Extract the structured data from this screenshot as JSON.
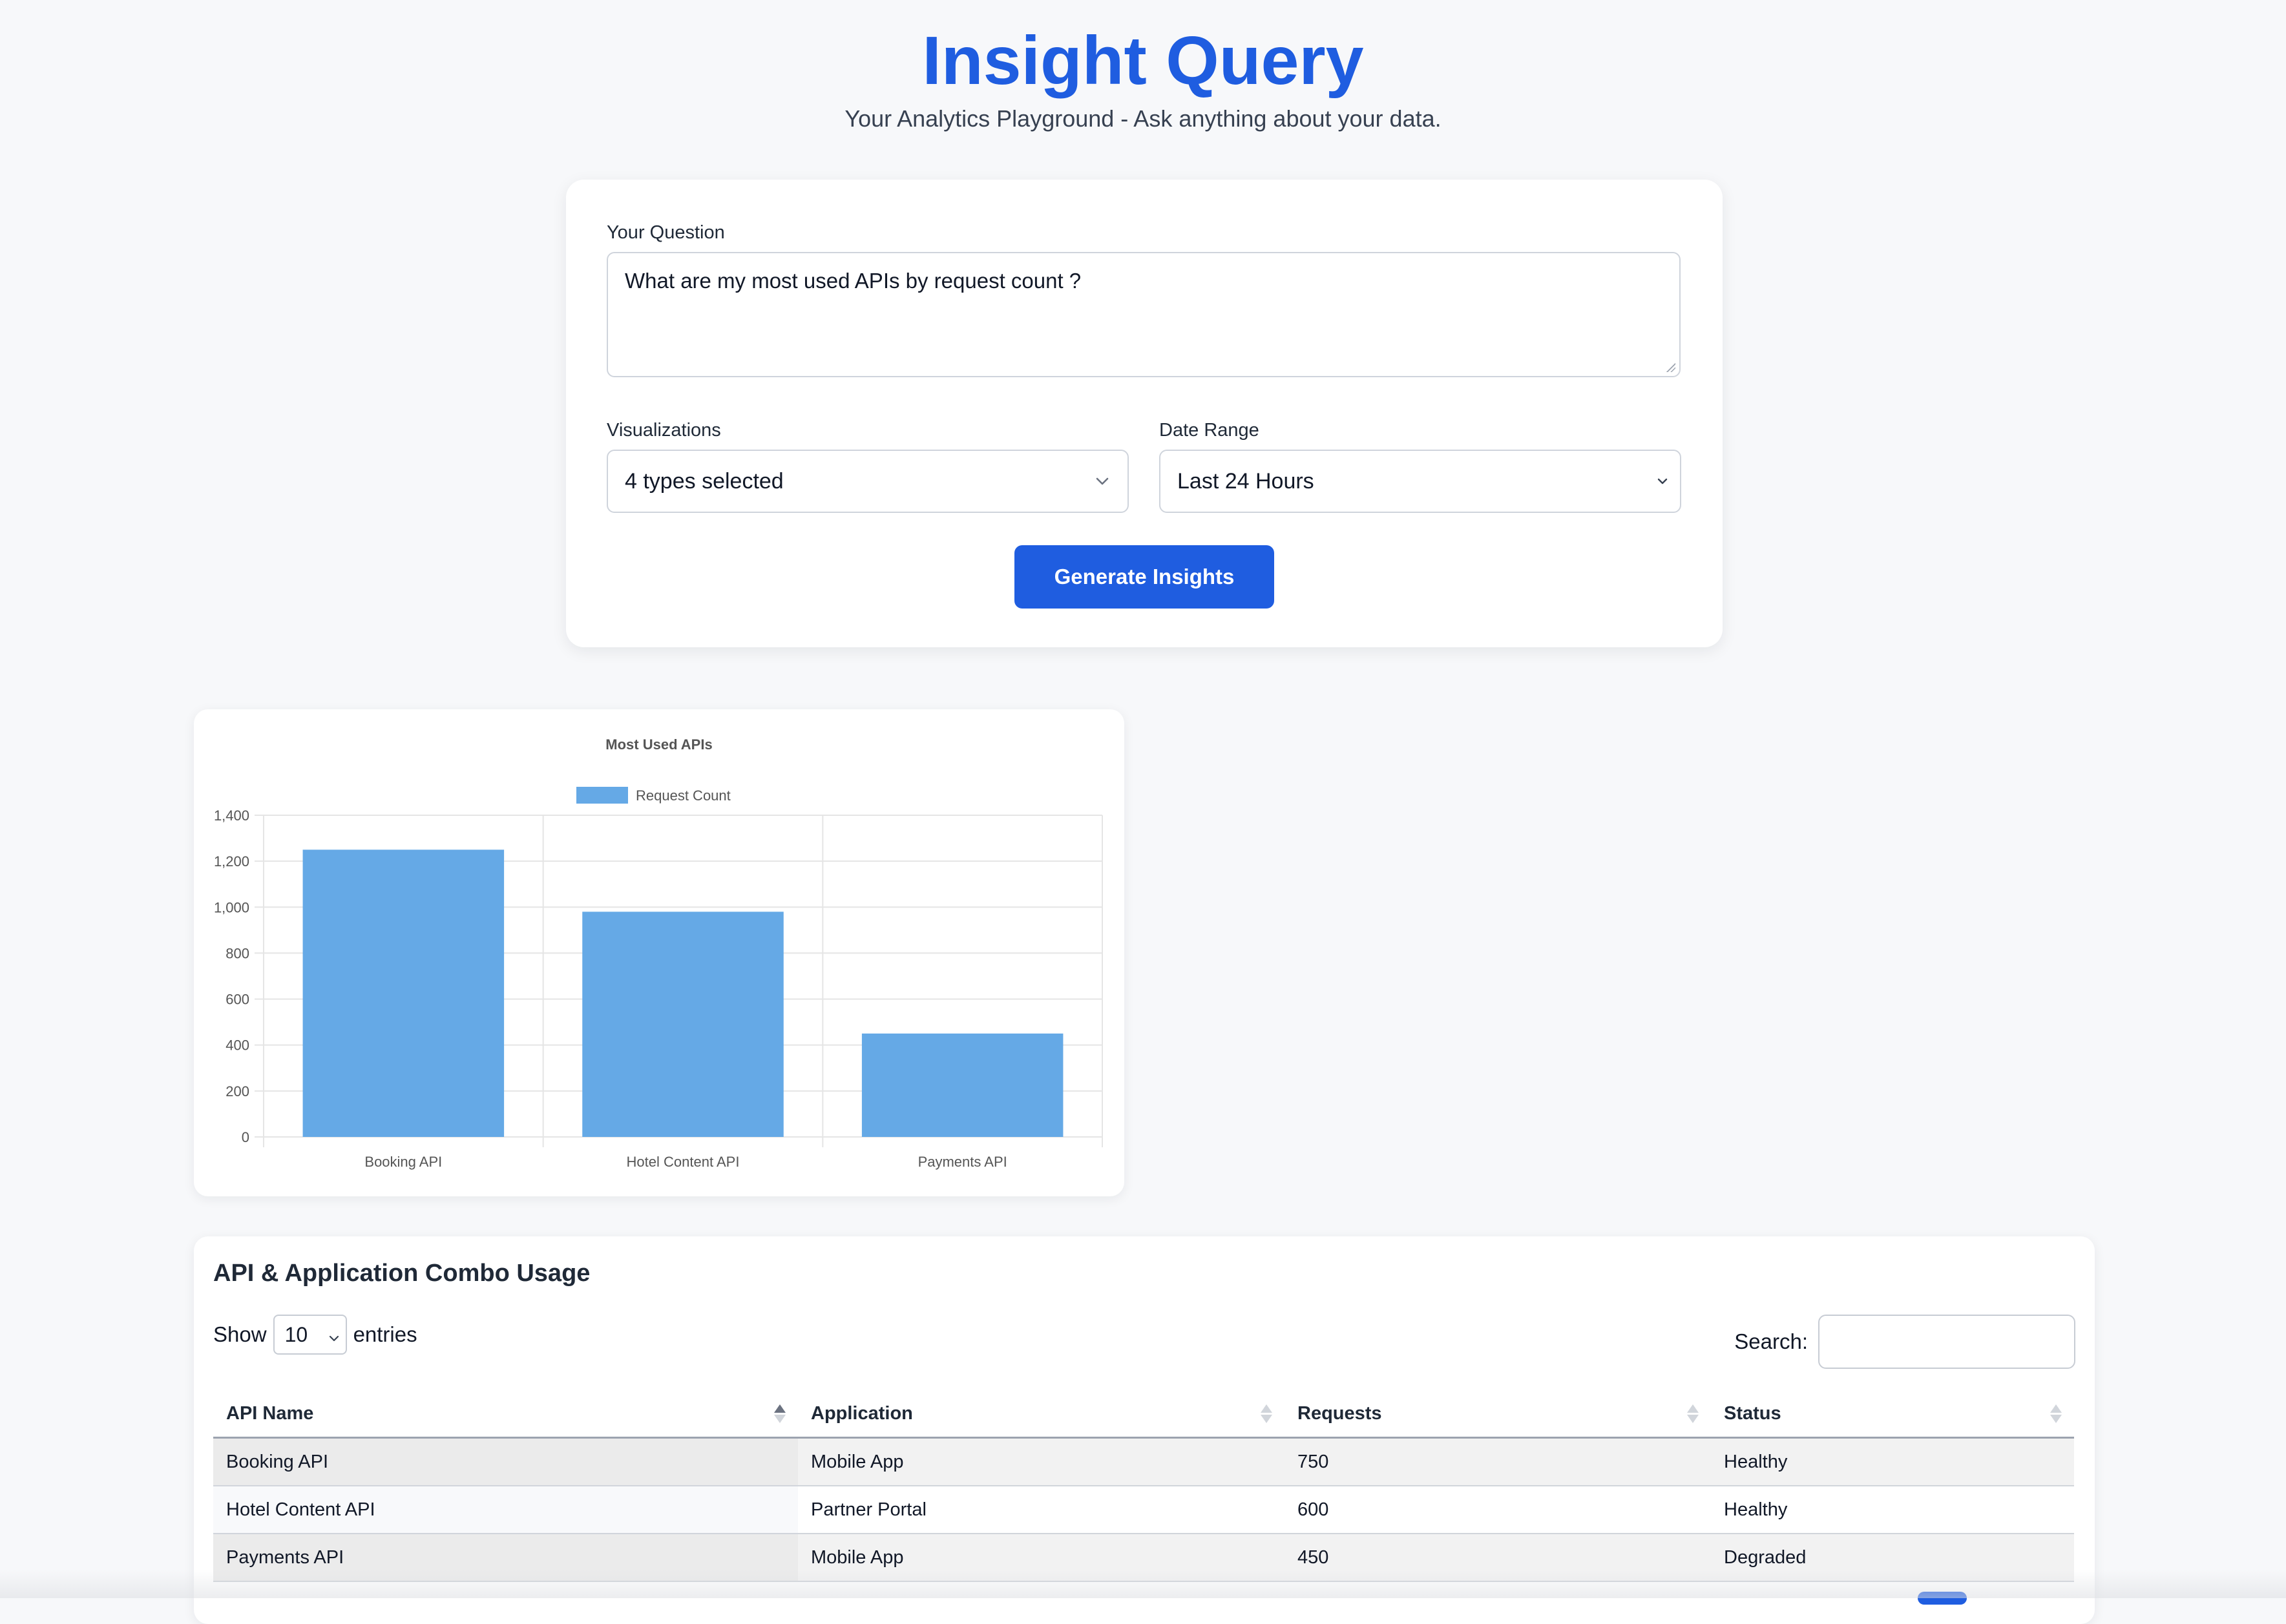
{
  "header": {
    "title": "Insight Query",
    "subtitle": "Your Analytics Playground - Ask anything about your data."
  },
  "query_form": {
    "question_label": "Your Question",
    "question_value": "What are my most used APIs by request count ?",
    "visualizations_label": "Visualizations",
    "visualizations_value": "4 types selected",
    "date_range_label": "Date Range",
    "date_range_value": "Last 24 Hours",
    "generate_button": "Generate Insights"
  },
  "chart_data": {
    "type": "bar",
    "title": "Most Used APIs",
    "legend": "Request Count",
    "legend_position": "top",
    "categories": [
      "Booking API",
      "Hotel Content API",
      "Payments API"
    ],
    "series": [
      {
        "name": "Request Count",
        "values": [
          1250,
          980,
          450
        ]
      }
    ],
    "ylim": [
      0,
      1400
    ],
    "y_ticks": [
      "0",
      "200",
      "400",
      "600",
      "800",
      "1,000",
      "1,200",
      "1,400"
    ],
    "y_tick_values": [
      0,
      200,
      400,
      600,
      800,
      1000,
      1200,
      1400
    ],
    "grid": true,
    "bar_color": "#65a9e6"
  },
  "table_section": {
    "title": "API & Application Combo Usage",
    "show_label": "Show",
    "page_length": "10",
    "entries_label": "entries",
    "search_label": "Search:",
    "columns": [
      "API Name",
      "Application",
      "Requests",
      "Status"
    ],
    "rows": [
      [
        "Booking API",
        "Mobile App",
        "750",
        "Healthy"
      ],
      [
        "Hotel Content API",
        "Partner Portal",
        "600",
        "Healthy"
      ],
      [
        "Payments API",
        "Mobile App",
        "450",
        "Degraded"
      ]
    ]
  },
  "colors": {
    "accent": "#1f5de0",
    "background": "#f7f8fa",
    "bar": "#65a9e6"
  }
}
